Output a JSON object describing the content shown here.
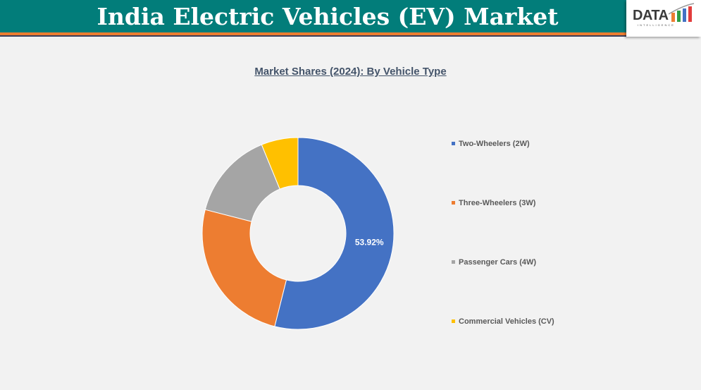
{
  "header": {
    "title": "India Electric Vehicles (EV) Market",
    "logo_text": "DATA",
    "logo_subtext": "INTELLIGENCE"
  },
  "chart_data": {
    "type": "pie",
    "subtype": "donut",
    "title": "Market Shares (2024): By Vehicle Type",
    "categories": [
      "Two-Wheelers (2W)",
      "Three-Wheelers (3W)",
      "Passenger Cars (4W)",
      "Commercial Vehicles (CV)"
    ],
    "values": [
      53.92,
      25.08,
      14.8,
      6.2
    ],
    "colors": [
      "#4472c4",
      "#ed7d31",
      "#a5a5a5",
      "#ffc000"
    ],
    "data_labels": [
      "53.92%",
      "",
      "",
      ""
    ],
    "legend_position": "right"
  }
}
